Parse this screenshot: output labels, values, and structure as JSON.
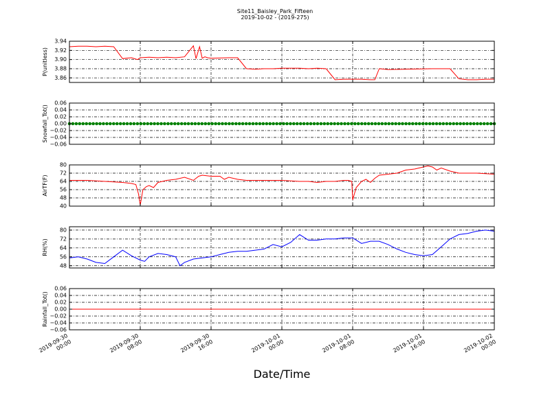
{
  "figure": {
    "title_line1": "Site11_Baisley_Park_Fifteen",
    "title_line2": "2019-10-02 - (2019-275)",
    "xlabel": "Date/Time"
  },
  "chart_data": [
    {
      "type": "line",
      "ylabel": "P(unitless)",
      "ylim": [
        3.85,
        3.94
      ],
      "yticks": [
        "3.94",
        "3.92",
        "3.90",
        "3.88",
        "3.86"
      ],
      "ytick_values": [
        3.94,
        3.92,
        3.9,
        3.88,
        3.86
      ],
      "grid": true,
      "series": [
        {
          "color": "#ff0000",
          "x_hours": [
            0,
            1,
            2,
            3,
            4,
            5,
            6,
            7,
            7.7,
            8,
            9,
            10,
            11,
            12,
            13,
            14,
            14.3,
            14.7,
            15,
            15.3,
            15.6,
            16,
            18,
            19,
            20,
            21,
            22,
            23,
            24,
            26,
            27,
            28,
            29,
            30,
            31,
            33,
            34,
            34.5,
            35,
            36,
            38,
            41,
            43,
            44,
            44.5,
            45,
            46,
            47,
            48
          ],
          "y": [
            3.928,
            3.929,
            3.929,
            3.928,
            3.929,
            3.928,
            3.902,
            3.904,
            3.9,
            3.904,
            3.905,
            3.904,
            3.905,
            3.904,
            3.906,
            3.93,
            3.902,
            3.928,
            3.903,
            3.906,
            3.904,
            3.903,
            3.904,
            3.904,
            3.88,
            3.879,
            3.88,
            3.88,
            3.881,
            3.881,
            3.88,
            3.881,
            3.88,
            3.856,
            3.857,
            3.857,
            3.856,
            3.856,
            3.88,
            3.878,
            3.879,
            3.88,
            3.88,
            3.858,
            3.857,
            3.856,
            3.856,
            3.857,
            3.857
          ]
        }
      ]
    },
    {
      "type": "line",
      "ylabel": "Snowfall_Tot()",
      "ylim": [
        -0.06,
        0.06
      ],
      "yticks": [
        "0.06",
        "0.04",
        "0.02",
        "0.00",
        "−0.02",
        "−0.04",
        "−0.06"
      ],
      "ytick_values": [
        0.06,
        0.04,
        0.02,
        0,
        -0.02,
        -0.04,
        -0.06
      ],
      "grid": true,
      "series": [
        {
          "color": "#008000",
          "marker": "dot",
          "x_hours": [
            0,
            48
          ],
          "y": [
            0,
            0
          ]
        }
      ]
    },
    {
      "type": "line",
      "ylabel": "AirTF(F)",
      "ylim": [
        40,
        80
      ],
      "yticks": [
        "80",
        "72",
        "64",
        "56",
        "48",
        "40"
      ],
      "ytick_values": [
        80,
        72,
        64,
        56,
        48,
        40
      ],
      "grid": true,
      "series": [
        {
          "color": "#ff0000",
          "x_hours": [
            0,
            2,
            4,
            6,
            7,
            7.5,
            7.8,
            8,
            8.3,
            8.7,
            9,
            9.5,
            10,
            11,
            12,
            13,
            14,
            14.6,
            15,
            16,
            17,
            17.5,
            18,
            19,
            20,
            22,
            24,
            26,
            27,
            28,
            29,
            30,
            31,
            31.5,
            31.9,
            32,
            32.4,
            33,
            33.5,
            34,
            34.5,
            35,
            36,
            37,
            38,
            39,
            40,
            40.5,
            41,
            41.5,
            42,
            43,
            44,
            46,
            48
          ],
          "y": [
            65,
            65,
            64,
            63,
            62,
            61,
            52,
            41,
            56,
            59,
            60,
            58,
            63,
            65,
            66,
            68,
            65,
            69,
            70,
            69,
            69,
            66,
            68,
            66,
            65,
            65,
            65,
            64,
            64,
            63,
            64,
            64,
            65,
            65,
            64,
            46,
            58,
            64,
            66,
            63,
            67,
            70,
            71,
            72,
            75,
            76,
            78,
            79,
            78,
            75,
            77,
            74,
            72,
            72,
            71
          ]
        }
      ]
    },
    {
      "type": "line",
      "ylabel": "RH(%)",
      "ylim": [
        46,
        83
      ],
      "yticks": [
        "80",
        "72",
        "64",
        "56",
        "48"
      ],
      "ytick_values": [
        80,
        72,
        64,
        56,
        48
      ],
      "grid": true,
      "series": [
        {
          "color": "#0000ff",
          "x_hours": [
            0,
            1,
            2,
            3,
            4,
            5,
            6,
            7,
            7.5,
            8,
            8.5,
            9,
            10,
            11,
            12,
            12.5,
            13,
            14,
            15,
            16,
            17,
            18,
            19,
            20,
            21,
            22,
            23,
            24,
            25,
            26,
            27,
            28,
            29,
            30,
            31,
            32,
            33,
            34,
            35,
            36,
            37,
            38,
            39,
            40,
            41,
            42,
            43,
            44,
            45,
            46,
            47,
            48
          ],
          "y": [
            55,
            56,
            54,
            51,
            50,
            56,
            62,
            57,
            55,
            53,
            52,
            56,
            59,
            58,
            56,
            48,
            51,
            54,
            55,
            56,
            58,
            60,
            61,
            61,
            62,
            63,
            67,
            65,
            69,
            76,
            71,
            71,
            72,
            72,
            73,
            73,
            68,
            70,
            70,
            67,
            63,
            60,
            58,
            57,
            58,
            65,
            72,
            76,
            77,
            79,
            80,
            79
          ]
        }
      ]
    },
    {
      "type": "line",
      "ylabel": "Rainfall_Tot()",
      "ylim": [
        -0.06,
        0.06
      ],
      "yticks": [
        "0.06",
        "0.04",
        "0.02",
        "0.00",
        "−0.02",
        "−0.04",
        "−0.06"
      ],
      "ytick_values": [
        0.06,
        0.04,
        0.02,
        0,
        -0.02,
        -0.04,
        -0.06
      ],
      "grid": true,
      "series": [
        {
          "color": "#ff0000",
          "x_hours": [
            0,
            48
          ],
          "y": [
            0,
            0
          ]
        }
      ]
    }
  ],
  "xaxis": {
    "x_range_hours": [
      0,
      48
    ],
    "tick_hours": [
      0,
      8,
      16,
      24,
      32,
      40,
      48
    ],
    "tick_labels": [
      [
        "2019-09-30",
        "00:00"
      ],
      [
        "2019-09-30",
        "08:00"
      ],
      [
        "2019-09-30",
        "16:00"
      ],
      [
        "2019-10-01",
        "00:00"
      ],
      [
        "2019-10-01",
        "08:00"
      ],
      [
        "2019-10-01",
        "16:00"
      ],
      [
        "2019-10-02",
        "00:00"
      ]
    ]
  }
}
